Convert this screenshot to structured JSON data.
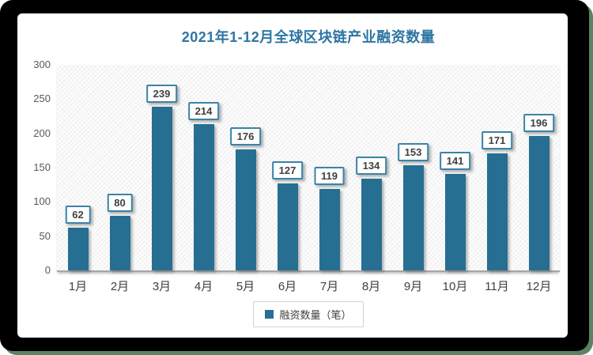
{
  "chart_data": {
    "type": "bar",
    "title": "2021年1-12月全球区块链产业融资数量",
    "categories": [
      "1月",
      "2月",
      "3月",
      "4月",
      "5月",
      "6月",
      "7月",
      "8月",
      "9月",
      "10月",
      "11月",
      "12月"
    ],
    "series": [
      {
        "name": "融资数量（笔）",
        "values": [
          62,
          80,
          239,
          214,
          176,
          127,
          119,
          134,
          153,
          141,
          171,
          196
        ]
      }
    ],
    "xlabel": "",
    "ylabel": "",
    "ylim": [
      0,
      300
    ],
    "ytick_step": 50,
    "grid": false,
    "data_labels": true,
    "legend_position": "bottom"
  },
  "colors": {
    "bar": "#266f93",
    "title": "#2e75a3",
    "label_border": "#3b83a8",
    "label_text": "#404040",
    "axis_text": "#595959",
    "axis_line": "#a6a6a6",
    "legend_border": "#d2d2d2",
    "frame": "#000000",
    "frame_shadow": "#5c8261"
  }
}
